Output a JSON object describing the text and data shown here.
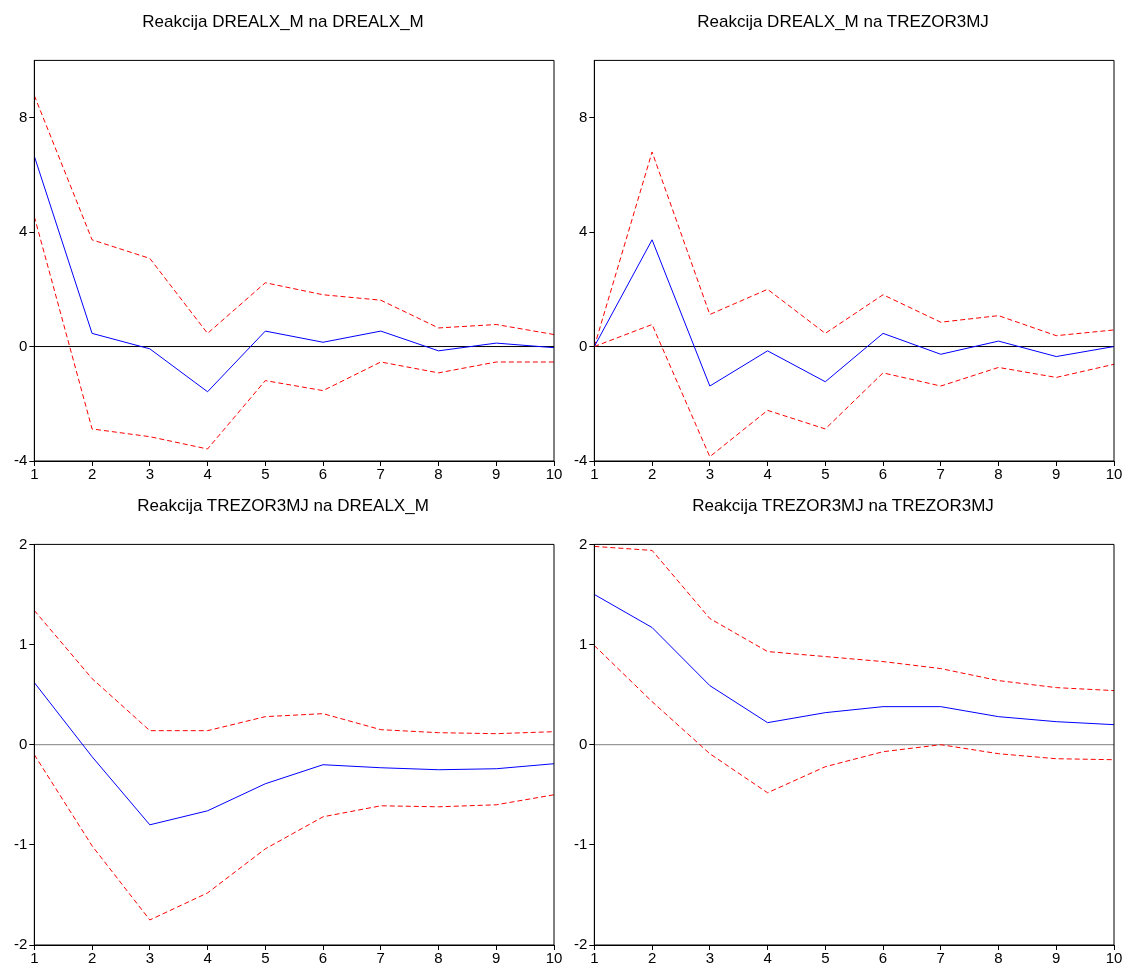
{
  "chart_data": [
    {
      "type": "line",
      "title": "Reakcija DREALX_M na DREALX_M",
      "x": [
        1,
        2,
        3,
        4,
        5,
        6,
        7,
        8,
        9,
        10
      ],
      "xlim": [
        1,
        10
      ],
      "xticks": [
        1,
        2,
        3,
        4,
        5,
        6,
        7,
        8,
        9,
        10
      ],
      "ylim": [
        -4,
        10
      ],
      "yticks": [
        -4,
        0,
        4,
        8
      ],
      "grid": false,
      "legend": false,
      "marker": "none",
      "ref_lines": [
        {
          "axis": "y",
          "value": 0,
          "color": "#000000"
        }
      ],
      "series": [
        {
          "color": "#0000ff",
          "line_style": "solid",
          "values": [
            6.65,
            0.46,
            -0.08,
            -1.58,
            0.54,
            0.15,
            0.54,
            -0.15,
            0.12,
            -0.04
          ]
        },
        {
          "color": "#ff0000",
          "line_style": "dashed",
          "values": [
            8.77,
            3.73,
            3.08,
            0.46,
            2.23,
            1.81,
            1.62,
            0.65,
            0.77,
            0.42
          ]
        },
        {
          "color": "#ff0000",
          "line_style": "dashed",
          "values": [
            4.54,
            -2.88,
            -3.15,
            -3.58,
            -1.19,
            -1.54,
            -0.54,
            -0.92,
            -0.54,
            -0.54
          ]
        }
      ]
    },
    {
      "type": "line",
      "title": "Reakcija DREALX_M na TREZOR3MJ",
      "x": [
        1,
        2,
        3,
        4,
        5,
        6,
        7,
        8,
        9,
        10
      ],
      "xlim": [
        1,
        10
      ],
      "xticks": [
        1,
        2,
        3,
        4,
        5,
        6,
        7,
        8,
        9,
        10
      ],
      "ylim": [
        -4,
        10
      ],
      "yticks": [
        -4,
        0,
        4,
        8
      ],
      "grid": false,
      "legend": false,
      "marker": "none",
      "ref_lines": [
        {
          "axis": "y",
          "value": 0,
          "color": "#000000"
        }
      ],
      "series": [
        {
          "color": "#0000ff",
          "line_style": "solid",
          "values": [
            0,
            3.73,
            -1.38,
            -0.15,
            -1.23,
            0.46,
            -0.27,
            0.19,
            -0.35,
            0
          ]
        },
        {
          "color": "#ff0000",
          "line_style": "dashed",
          "values": [
            0,
            6.8,
            1.12,
            2.0,
            0.46,
            1.81,
            0.85,
            1.08,
            0.38,
            0.58
          ]
        },
        {
          "color": "#ff0000",
          "line_style": "dashed",
          "values": [
            0,
            0.77,
            -3.85,
            -2.23,
            -2.88,
            -0.92,
            -1.38,
            -0.73,
            -1.08,
            -0.62
          ]
        }
      ]
    },
    {
      "type": "line",
      "title": "Reakcija TREZOR3MJ na DREALX_M",
      "x": [
        1,
        2,
        3,
        4,
        5,
        6,
        7,
        8,
        9,
        10
      ],
      "xlim": [
        1,
        10
      ],
      "xticks": [
        1,
        2,
        3,
        4,
        5,
        6,
        7,
        8,
        9,
        10
      ],
      "ylim": [
        -2,
        2
      ],
      "yticks": [
        -2,
        -1,
        0,
        1,
        2
      ],
      "grid": false,
      "legend": false,
      "marker": "none",
      "ref_lines": [
        {
          "axis": "y",
          "value": 0,
          "color": "#808080"
        }
      ],
      "series": [
        {
          "color": "#0000ff",
          "line_style": "solid",
          "values": [
            0.62,
            -0.12,
            -0.8,
            -0.66,
            -0.39,
            -0.2,
            -0.23,
            -0.25,
            -0.24,
            -0.19
          ]
        },
        {
          "color": "#ff0000",
          "line_style": "dashed",
          "values": [
            1.34,
            0.66,
            0.14,
            0.14,
            0.28,
            0.31,
            0.15,
            0.12,
            0.11,
            0.13
          ]
        },
        {
          "color": "#ff0000",
          "line_style": "dashed",
          "values": [
            -0.1,
            -1.01,
            -1.75,
            -1.48,
            -1.04,
            -0.72,
            -0.61,
            -0.62,
            -0.6,
            -0.5
          ]
        }
      ]
    },
    {
      "type": "line",
      "title": "Reakcija TREZOR3MJ na TREZOR3MJ",
      "x": [
        1,
        2,
        3,
        4,
        5,
        6,
        7,
        8,
        9,
        10
      ],
      "xlim": [
        1,
        10
      ],
      "xticks": [
        1,
        2,
        3,
        4,
        5,
        6,
        7,
        8,
        9,
        10
      ],
      "ylim": [
        -2,
        2
      ],
      "yticks": [
        -2,
        -1,
        0,
        1,
        2
      ],
      "grid": false,
      "legend": false,
      "marker": "none",
      "ref_lines": [
        {
          "axis": "y",
          "value": 0,
          "color": "#808080"
        }
      ],
      "series": [
        {
          "color": "#0000ff",
          "line_style": "solid",
          "values": [
            1.5,
            1.17,
            0.59,
            0.22,
            0.32,
            0.38,
            0.38,
            0.28,
            0.23,
            0.2
          ]
        },
        {
          "color": "#ff0000",
          "line_style": "dashed",
          "values": [
            1.98,
            1.94,
            1.26,
            0.93,
            0.88,
            0.83,
            0.76,
            0.64,
            0.57,
            0.54
          ]
        },
        {
          "color": "#ff0000",
          "line_style": "dashed",
          "values": [
            0.99,
            0.43,
            -0.09,
            -0.48,
            -0.22,
            -0.07,
            0,
            -0.09,
            -0.14,
            -0.15
          ]
        }
      ]
    }
  ]
}
